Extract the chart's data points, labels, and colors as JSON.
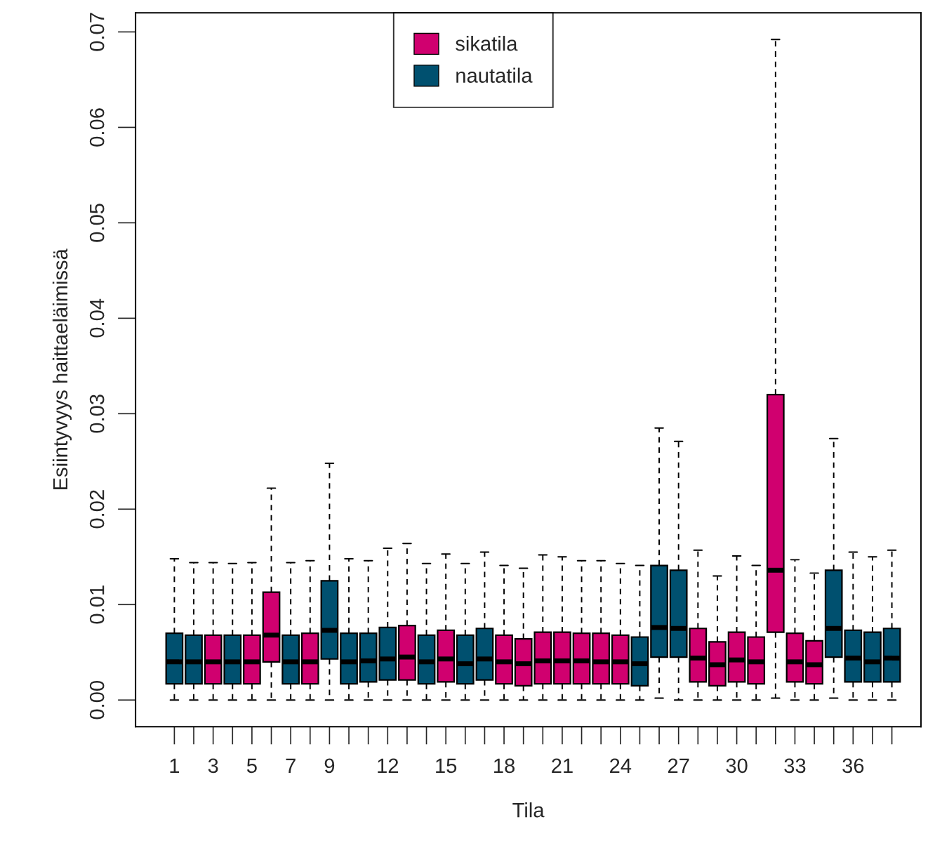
{
  "chart_data": {
    "type": "box",
    "xlabel": "Tila",
    "ylabel": "Esiintyvyys haittaeläimissä",
    "categories": [
      "1",
      null,
      "3",
      null,
      "5",
      null,
      "7",
      null,
      "9",
      null,
      null,
      "12",
      null,
      null,
      "15",
      null,
      null,
      "18",
      null,
      null,
      "21",
      null,
      null,
      "24",
      null,
      null,
      "27",
      null,
      null,
      "30",
      null,
      null,
      "33",
      null,
      null,
      "36",
      null,
      null
    ],
    "ylim": [
      -0.0028,
      0.072
    ],
    "yticks": [
      {
        "value": 0,
        "label": "0.00"
      },
      {
        "value": 0.01,
        "label": "0.01"
      },
      {
        "value": 0.02,
        "label": "0.02"
      },
      {
        "value": 0.03,
        "label": "0.03"
      },
      {
        "value": 0.04,
        "label": "0.04"
      },
      {
        "value": 0.05,
        "label": "0.05"
      },
      {
        "value": 0.06,
        "label": "0.06"
      },
      {
        "value": 0.07,
        "label": "0.07"
      }
    ],
    "legend": "top",
    "grid": false,
    "series": [
      {
        "name": "sikatila",
        "color": "#d0006f",
        "boxes": [
          null,
          null,
          {
            "low": 0,
            "q1": 0.0017,
            "median": 0.004,
            "q3": 0.0068,
            "high": 0.0144
          },
          null,
          {
            "low": 0,
            "q1": 0.0017,
            "median": 0.004,
            "q3": 0.0068,
            "high": 0.0144
          },
          {
            "low": 0,
            "q1": 0.004,
            "median": 0.0068,
            "q3": 0.0113,
            "high": 0.0222
          },
          null,
          {
            "low": 0,
            "q1": 0.0017,
            "median": 0.004,
            "q3": 0.007,
            "high": 0.0146
          },
          null,
          null,
          null,
          null,
          {
            "low": 0,
            "q1": 0.0021,
            "median": 0.0045,
            "q3": 0.0078,
            "high": 0.0164
          },
          null,
          {
            "low": 0,
            "q1": 0.0019,
            "median": 0.0043,
            "q3": 0.0073,
            "high": 0.0153
          },
          null,
          null,
          {
            "low": 0,
            "q1": 0.0017,
            "median": 0.004,
            "q3": 0.0068,
            "high": 0.0141
          },
          {
            "low": 0,
            "q1": 0.0015,
            "median": 0.0038,
            "q3": 0.0064,
            "high": 0.0138
          },
          {
            "low": 0,
            "q1": 0.0017,
            "median": 0.0041,
            "q3": 0.0071,
            "high": 0.0152
          },
          {
            "low": 0,
            "q1": 0.0017,
            "median": 0.0041,
            "q3": 0.0071,
            "high": 0.015
          },
          {
            "low": 0,
            "q1": 0.0017,
            "median": 0.0041,
            "q3": 0.007,
            "high": 0.0146
          },
          {
            "low": 0,
            "q1": 0.0017,
            "median": 0.004,
            "q3": 0.007,
            "high": 0.0146
          },
          {
            "low": 0,
            "q1": 0.0017,
            "median": 0.004,
            "q3": 0.0068,
            "high": 0.0143
          },
          null,
          null,
          null,
          {
            "low": 0,
            "q1": 0.0019,
            "median": 0.0044,
            "q3": 0.0075,
            "high": 0.0157
          },
          {
            "low": 0,
            "q1": 0.0015,
            "median": 0.0037,
            "q3": 0.0061,
            "high": 0.013
          },
          {
            "low": 0,
            "q1": 0.0019,
            "median": 0.0042,
            "q3": 0.0071,
            "high": 0.0151
          },
          {
            "low": 0,
            "q1": 0.0017,
            "median": 0.004,
            "q3": 0.0066,
            "high": 0.0141
          },
          {
            "low": 0.0002,
            "q1": 0.0071,
            "median": 0.0136,
            "q3": 0.032,
            "high": 0.0692
          },
          {
            "low": 0,
            "q1": 0.0019,
            "median": 0.004,
            "q3": 0.007,
            "high": 0.0147
          },
          {
            "low": 0,
            "q1": 0.0017,
            "median": 0.0037,
            "q3": 0.0062,
            "high": 0.0133
          },
          null,
          null,
          null,
          null
        ]
      },
      {
        "name": "nautatila",
        "color": "#00506f",
        "boxes": [
          {
            "low": 0,
            "q1": 0.0017,
            "median": 0.004,
            "q3": 0.007,
            "high": 0.0148
          },
          {
            "low": 0,
            "q1": 0.0017,
            "median": 0.004,
            "q3": 0.0068,
            "high": 0.0144
          },
          null,
          {
            "low": 0,
            "q1": 0.0017,
            "median": 0.004,
            "q3": 0.0068,
            "high": 0.0143
          },
          null,
          null,
          {
            "low": 0,
            "q1": 0.0017,
            "median": 0.004,
            "q3": 0.0068,
            "high": 0.0144
          },
          null,
          {
            "low": 0,
            "q1": 0.0043,
            "median": 0.0073,
            "q3": 0.0125,
            "high": 0.0248
          },
          {
            "low": 0,
            "q1": 0.0017,
            "median": 0.004,
            "q3": 0.007,
            "high": 0.0148
          },
          {
            "low": 0,
            "q1": 0.0019,
            "median": 0.0041,
            "q3": 0.007,
            "high": 0.0146
          },
          {
            "low": 0,
            "q1": 0.0021,
            "median": 0.0043,
            "q3": 0.0076,
            "high": 0.0159
          },
          null,
          {
            "low": 0,
            "q1": 0.0017,
            "median": 0.004,
            "q3": 0.0068,
            "high": 0.0143
          },
          null,
          {
            "low": 0,
            "q1": 0.0017,
            "median": 0.0038,
            "q3": 0.0068,
            "high": 0.0143
          },
          {
            "low": 0,
            "q1": 0.0021,
            "median": 0.0043,
            "q3": 0.0075,
            "high": 0.0155
          },
          null,
          null,
          null,
          null,
          null,
          null,
          null,
          {
            "low": 0,
            "q1": 0.0015,
            "median": 0.0038,
            "q3": 0.0066,
            "high": 0.0141
          },
          {
            "low": 0.0002,
            "q1": 0.0045,
            "median": 0.0076,
            "q3": 0.0141,
            "high": 0.0285
          },
          {
            "low": 0,
            "q1": 0.0045,
            "median": 0.0075,
            "q3": 0.0136,
            "high": 0.0271
          },
          null,
          null,
          null,
          null,
          null,
          null,
          null,
          {
            "low": 0.0002,
            "q1": 0.0045,
            "median": 0.0075,
            "q3": 0.0136,
            "high": 0.0274
          },
          {
            "low": 0,
            "q1": 0.0019,
            "median": 0.0044,
            "q3": 0.0073,
            "high": 0.0155
          },
          {
            "low": 0,
            "q1": 0.0019,
            "median": 0.004,
            "q3": 0.0071,
            "high": 0.015
          },
          {
            "low": 0,
            "q1": 0.0019,
            "median": 0.0044,
            "q3": 0.0075,
            "high": 0.0157
          }
        ]
      }
    ]
  }
}
